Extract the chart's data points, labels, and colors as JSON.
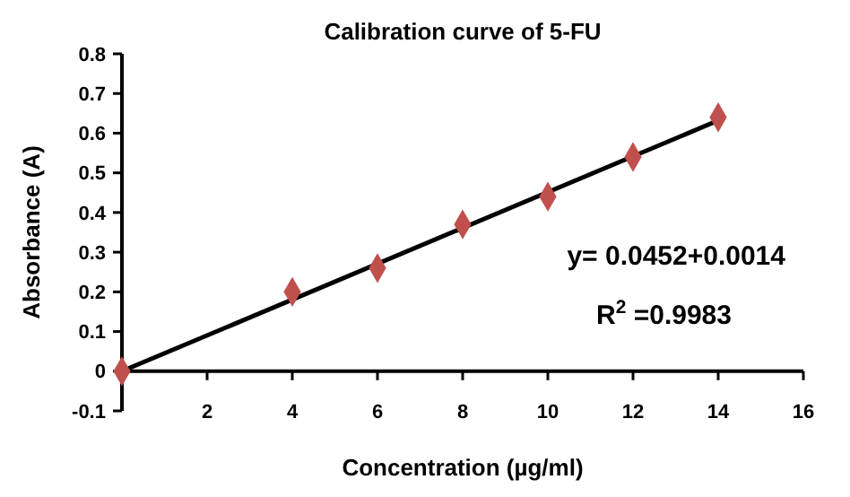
{
  "chart_data": {
    "type": "scatter",
    "title": "Calibration curve of 5-FU",
    "xlabel": "Concentration (µg/ml)",
    "ylabel": "Absorbance (A)",
    "xlim": [
      0,
      16
    ],
    "xticks": [
      {
        "value": 0,
        "label": null
      },
      2,
      4,
      6,
      8,
      10,
      12,
      14,
      16
    ],
    "ylim": [
      -0.1,
      0.8
    ],
    "yticks": [
      -0.1,
      0,
      0.1,
      0.2,
      0.3,
      0.4,
      0.5,
      0.6,
      0.7,
      0.8
    ],
    "grid": false,
    "series": [
      {
        "color": "#c0504d",
        "marker": "diamond",
        "x": [
          0,
          4,
          6,
          8,
          10,
          12,
          14
        ],
        "values": [
          0,
          0.2,
          0.26,
          0.37,
          0.44,
          0.54,
          0.64
        ]
      },
      {
        "type": "line",
        "color": "#000000",
        "x": [
          0,
          14
        ],
        "values": [
          0,
          0.632
        ]
      }
    ],
    "annotations": [
      "y= 0.0452+0.0014",
      "R$^{2}$ =0.9983"
    ]
  }
}
